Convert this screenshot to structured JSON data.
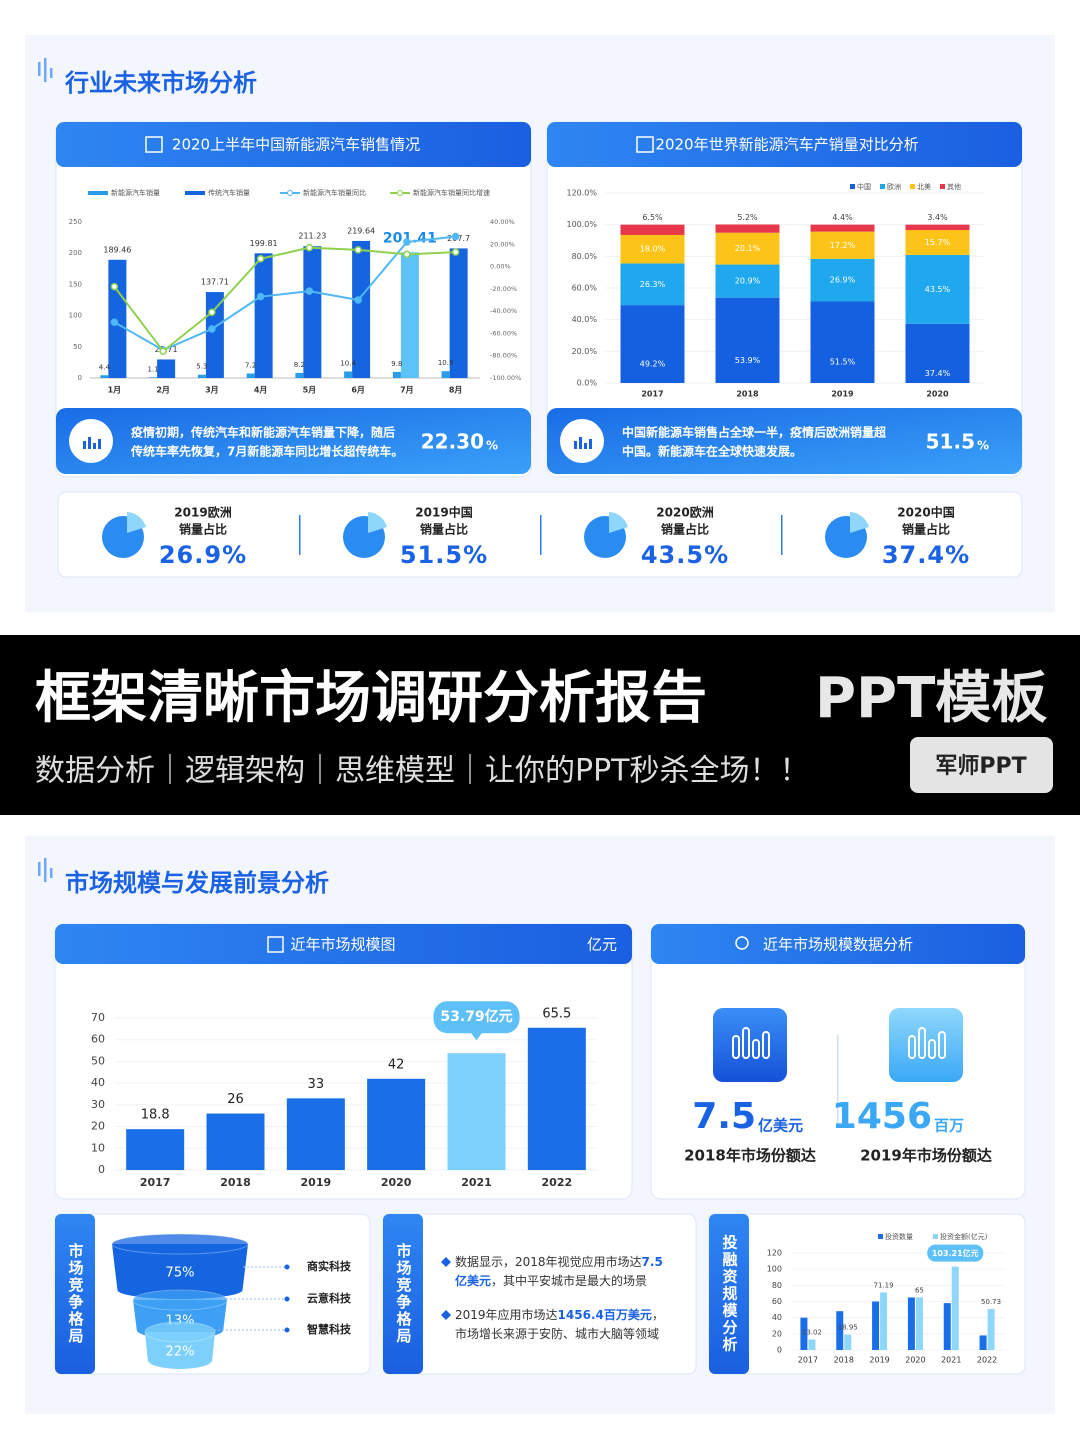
{
  "slide1": {
    "title": "行业未来市场分析",
    "panels": [
      {
        "header": "2020上半年中国新能源汽车销售情况",
        "note": [
          "疫情初期，传统汽车和新能源汽车销量下降，随后",
          "传统车率先恢复，7月新能源车同比增长超传统车。"
        ],
        "stat": "22.30",
        "stat_unit": "%"
      },
      {
        "header": "2020年世界新能源汽车产销量对比分析",
        "note": [
          "中国新能源车销售占全球一半，疫情后欧洲销量超",
          "中国。新能源车在全球快速发展。"
        ],
        "stat": "51.5",
        "stat_unit": "%"
      }
    ],
    "stats": [
      {
        "line1": "2019欧洲",
        "line2": "销量占比",
        "value": "26.9%"
      },
      {
        "line1": "2019中国",
        "line2": "销量占比",
        "value": "51.5%"
      },
      {
        "line1": "2020欧洲",
        "line2": "销量占比",
        "value": "43.5%"
      },
      {
        "line1": "2020中国",
        "line2": "销量占比",
        "value": "37.4%"
      }
    ]
  },
  "banner": {
    "title": "框架清晰市场调研分析报告",
    "tag": "PPT模板",
    "subtitle": "数据分析｜逻辑架构｜思维模型｜让你的PPT秒杀全场！！",
    "badge": "军师PPT"
  },
  "slide2": {
    "title": "市场规模与发展前景分析",
    "panel_left": {
      "header": "近年市场规模图",
      "unit": "亿元"
    },
    "panel_right": {
      "header": "近年市场规模数据分析",
      "items": [
        {
          "value": "7.5",
          "unit": "亿美元",
          "caption": "2018年市场份额达"
        },
        {
          "value": "1456",
          "unit": "百万",
          "caption": "2019年市场份额达"
        }
      ]
    },
    "side_labels": [
      "市场竞争格局",
      "市场竞争格局",
      "投融资规模分析"
    ],
    "bullets": [
      [
        [
          {
            "text": "数据显示，2018年视觉应用市场达"
          },
          {
            "text": "7.5",
            "highlight": true
          }
        ],
        [
          {
            "text": "亿美元",
            "highlight": true
          },
          {
            "text": "，其中平安城市是最大的场景"
          }
        ]
      ],
      [
        [
          {
            "text": "2019年应用市场达"
          },
          {
            "text": "1456.4百万美元",
            "highlight": true
          },
          {
            "text": "，"
          }
        ],
        [
          {
            "text": "市场增长来源于安防、城市大脑等领域"
          }
        ]
      ]
    ]
  },
  "chart_data": [
    {
      "type": "combo",
      "categories": [
        "1月",
        "2月",
        "3月",
        "4月",
        "5月",
        "6月",
        "7月",
        "8月"
      ],
      "series": [
        {
          "name": "新能源汽车销量",
          "type": "bar",
          "color": "#2a9de8",
          "values": [
            4.4,
            1.1,
            5.3,
            7.2,
            8.2,
            10.4,
            9.8,
            10.9
          ]
        },
        {
          "name": "传统汽车销量",
          "type": "bar",
          "color": "#1565e0",
          "colors": [
            "#1565e0",
            "#1565e0",
            "#1565e0",
            "#1565e0",
            "#1565e0",
            "#1565e0",
            "#5cc3f7",
            "#1565e0"
          ],
          "values": [
            189.46,
            29.71,
            137.71,
            199.81,
            211.23,
            219.64,
            201.41,
            207.7
          ]
        },
        {
          "name": "新能源汽车销量同比",
          "type": "line",
          "axis": "y2",
          "color": "#4fb8f5",
          "values": [
            -50,
            -75,
            -56,
            -27,
            -22,
            -30,
            22,
            27
          ]
        },
        {
          "name": "新能源汽车销量同比增速",
          "type": "line",
          "axis": "y2",
          "color": "#8fd14f",
          "values": [
            -18,
            -76,
            -41,
            7,
            17,
            15,
            11,
            13
          ]
        }
      ],
      "ylim": [
        0,
        250
      ],
      "yticks": [
        0,
        50,
        100,
        150,
        200,
        250
      ],
      "y2lim": [
        -100,
        40
      ],
      "y2ticks": [
        {
          "value": 40,
          "label": "40.00%"
        },
        {
          "value": 20,
          "label": "20.00%"
        },
        {
          "value": 0,
          "label": "0.00%"
        },
        {
          "value": -20,
          "label": "-20.00%"
        },
        {
          "value": -40,
          "label": "-40.00%"
        },
        {
          "value": -60,
          "label": "-60.00%"
        },
        {
          "value": -80,
          "label": "-80.00%"
        },
        {
          "value": -100,
          "label": "-100.00%"
        }
      ]
    },
    {
      "type": "stacked_bar",
      "categories": [
        "2017",
        "2018",
        "2019",
        "2020"
      ],
      "series": [
        {
          "name": "中国",
          "color": "#1560e0",
          "values": [
            49.2,
            53.9,
            51.5,
            37.4
          ],
          "value_labels": [
            "49.2%",
            "53.9%",
            "51.5%",
            "37.4%"
          ]
        },
        {
          "name": "欧洲",
          "color": "#1fa8ee",
          "values": [
            26.3,
            20.9,
            26.9,
            43.5
          ],
          "value_labels": [
            "26.3%",
            "20.9%",
            "26.9%",
            "43.5%"
          ]
        },
        {
          "name": "北美",
          "color": "#fcc419",
          "values": [
            18.0,
            20.1,
            17.2,
            15.7
          ],
          "value_labels": [
            "18.0%",
            "20.1%",
            "17.2%",
            "15.7%"
          ]
        },
        {
          "name": "其他",
          "color": "#e8374a",
          "values": [
            6.5,
            5.2,
            4.4,
            3.4
          ],
          "value_labels": [
            "6.5%",
            "5.2%",
            "4.4%",
            "3.4%"
          ]
        }
      ],
      "ylim": [
        0,
        120
      ],
      "yticks": [
        {
          "value": 0,
          "label": "0.0%"
        },
        {
          "value": 20,
          "label": "20.0%"
        },
        {
          "value": 40,
          "label": "40.0%"
        },
        {
          "value": 60,
          "label": "60.0%"
        },
        {
          "value": 80,
          "label": "80.0%"
        },
        {
          "value": 100,
          "label": "100.0%"
        },
        {
          "value": 120,
          "label": "120.0%"
        }
      ]
    },
    {
      "type": "bar",
      "categories": [
        "2017",
        "2018",
        "2019",
        "2020",
        "2021",
        "2022"
      ],
      "values": [
        18.8,
        26,
        33,
        42,
        53.79,
        65.5
      ],
      "value_labels": [
        "18.8",
        "26",
        "33",
        "42",
        "53.79亿元",
        "65.5"
      ],
      "colors": [
        "#1a6fe8",
        "#1a6fe8",
        "#1a6fe8",
        "#1a6fe8",
        "#7cd0fb",
        "#1a6fe8"
      ],
      "ylim": [
        0,
        70
      ],
      "yticks": [
        0,
        10,
        20,
        30,
        40,
        50,
        60,
        70
      ],
      "grid": true
    },
    {
      "type": "funnel",
      "categories": [
        "商实科技",
        "云意科技",
        "智慧科技"
      ],
      "values": [
        75,
        13,
        22
      ],
      "value_labels": [
        "75%",
        "13%",
        "22%"
      ],
      "colors": [
        "#1565e0",
        "#3da0f5",
        "#7cd0fb"
      ]
    },
    {
      "type": "grouped_bar",
      "categories": [
        "2017",
        "2018",
        "2019",
        "2020",
        "2021",
        "2022"
      ],
      "series": [
        {
          "name": "投资数量",
          "color": "#1a6fe8",
          "values": [
            40,
            48,
            60,
            65,
            58,
            18
          ]
        },
        {
          "name": "投资金额(亿元)",
          "color": "#8fd6fb",
          "values": [
            13.02,
            18.95,
            71.19,
            65,
            103.21,
            50.73
          ],
          "value_labels": [
            "13.02",
            "18.95",
            "71.19",
            "65",
            "103.21亿元",
            "50.73"
          ]
        }
      ],
      "ylim": [
        0,
        120
      ],
      "yticks": [
        0,
        20,
        40,
        60,
        80,
        100,
        120
      ]
    }
  ]
}
